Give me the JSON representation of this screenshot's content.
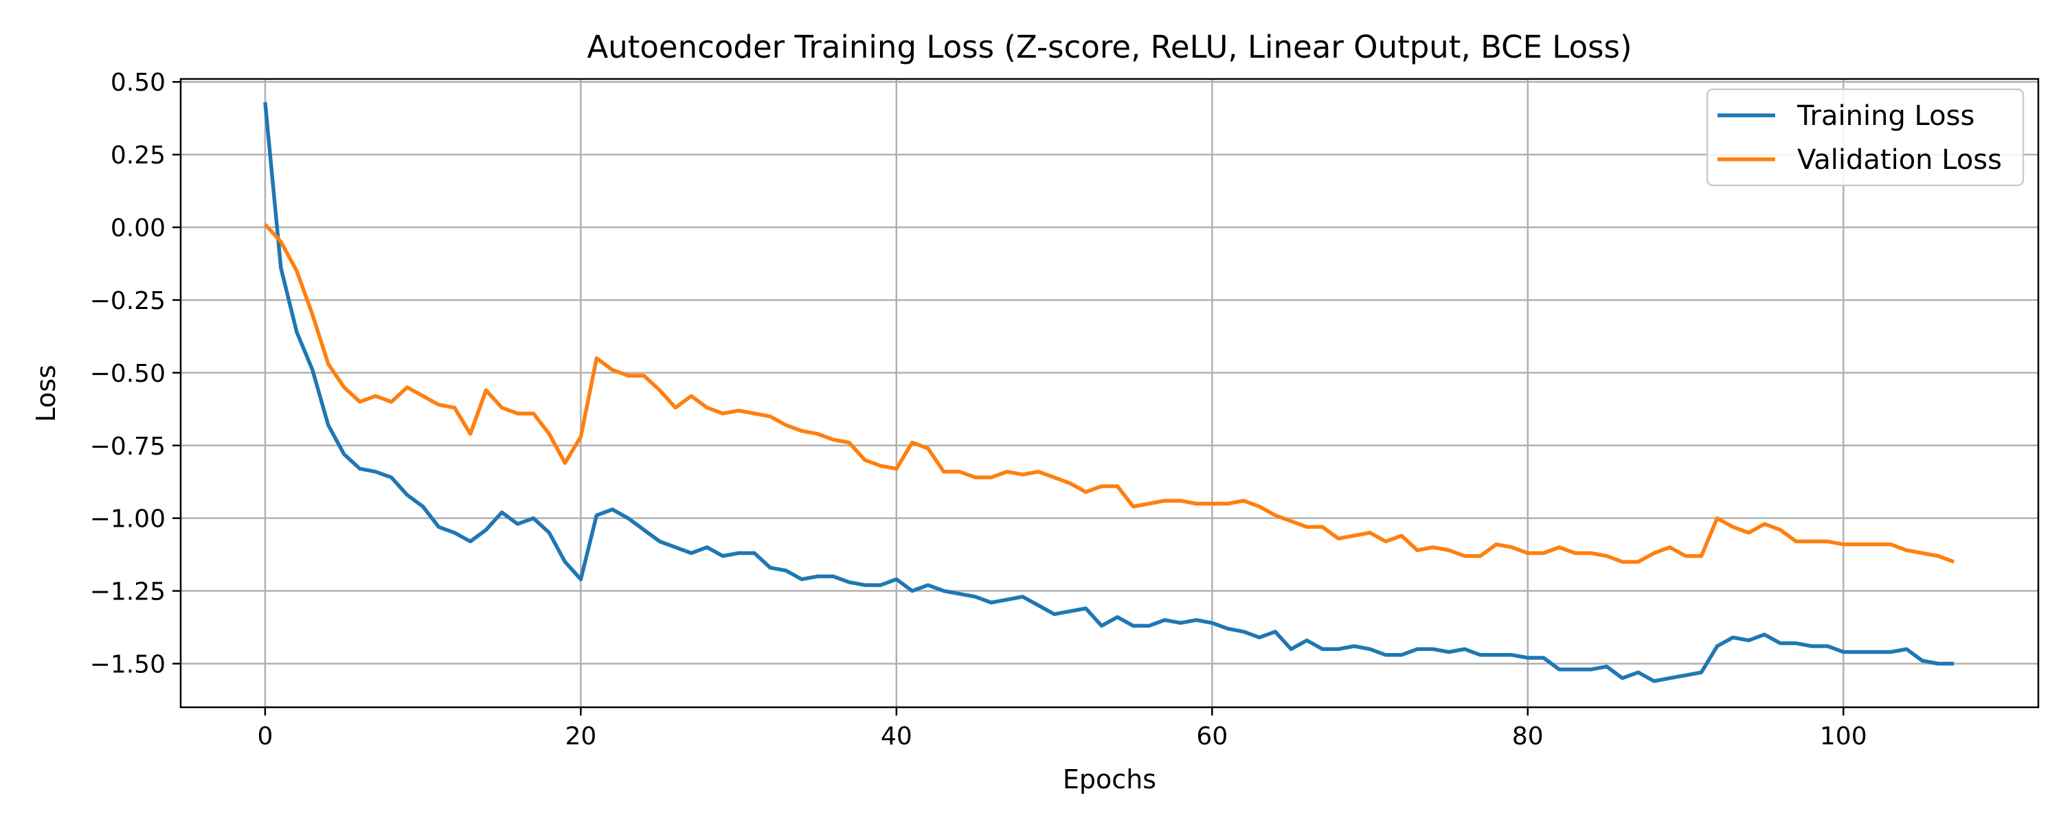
{
  "chart_data": {
    "type": "line",
    "title": "Autoencoder Training Loss (Z-score, ReLU, Linear Output, BCE Loss)",
    "xlabel": "Epochs",
    "ylabel": "Loss",
    "xlim": [
      -5.35,
      112.35
    ],
    "ylim": [
      -1.65,
      0.51
    ],
    "xticks": [
      0,
      20,
      40,
      60,
      80,
      100
    ],
    "yticks": [
      0.5,
      0.25,
      0.0,
      -0.25,
      -0.5,
      -0.75,
      -1.0,
      -1.25,
      -1.5
    ],
    "xtick_labels": [
      "0",
      "20",
      "40",
      "60",
      "80",
      "100"
    ],
    "ytick_labels": [
      "0.50",
      "0.25",
      "0.00",
      "−0.25",
      "−0.50",
      "−0.75",
      "−1.00",
      "−1.25",
      "−1.50"
    ],
    "grid": true,
    "legend_position": "top-right",
    "series": [
      {
        "name": "Training Loss",
        "color": "#1f77b4",
        "values": [
          0.43,
          -0.14,
          -0.36,
          -0.49,
          -0.68,
          -0.78,
          -0.83,
          -0.84,
          -0.86,
          -0.92,
          -0.96,
          -1.03,
          -1.05,
          -1.08,
          -1.04,
          -0.98,
          -1.02,
          -1.0,
          -1.05,
          -1.15,
          -1.21,
          -0.99,
          -0.97,
          -1.0,
          -1.04,
          -1.08,
          -1.1,
          -1.12,
          -1.1,
          -1.13,
          -1.12,
          -1.12,
          -1.17,
          -1.18,
          -1.21,
          -1.2,
          -1.2,
          -1.22,
          -1.23,
          -1.23,
          -1.21,
          -1.25,
          -1.23,
          -1.25,
          -1.26,
          -1.27,
          -1.29,
          -1.28,
          -1.27,
          -1.3,
          -1.33,
          -1.32,
          -1.31,
          -1.37,
          -1.34,
          -1.37,
          -1.37,
          -1.35,
          -1.36,
          -1.35,
          -1.36,
          -1.38,
          -1.39,
          -1.41,
          -1.39,
          -1.45,
          -1.42,
          -1.45,
          -1.45,
          -1.44,
          -1.45,
          -1.47,
          -1.47,
          -1.45,
          -1.45,
          -1.46,
          -1.45,
          -1.47,
          -1.47,
          -1.47,
          -1.48,
          -1.48,
          -1.52,
          -1.52,
          -1.52,
          -1.51,
          -1.55,
          -1.53,
          -1.56,
          -1.55,
          -1.54,
          -1.53,
          -1.44,
          -1.41,
          -1.42,
          -1.4,
          -1.43,
          -1.43,
          -1.44,
          -1.44,
          -1.46,
          -1.46,
          -1.46,
          -1.46,
          -1.45,
          -1.49,
          -1.5,
          -1.5
        ]
      },
      {
        "name": "Validation Loss",
        "color": "#ff7f0e",
        "values": [
          0.01,
          -0.05,
          -0.15,
          -0.3,
          -0.47,
          -0.55,
          -0.6,
          -0.58,
          -0.6,
          -0.55,
          -0.58,
          -0.61,
          -0.62,
          -0.71,
          -0.56,
          -0.62,
          -0.64,
          -0.64,
          -0.71,
          -0.81,
          -0.72,
          -0.45,
          -0.49,
          -0.51,
          -0.51,
          -0.56,
          -0.62,
          -0.58,
          -0.62,
          -0.64,
          -0.63,
          -0.64,
          -0.65,
          -0.68,
          -0.7,
          -0.71,
          -0.73,
          -0.74,
          -0.8,
          -0.82,
          -0.83,
          -0.74,
          -0.76,
          -0.84,
          -0.84,
          -0.86,
          -0.86,
          -0.84,
          -0.85,
          -0.84,
          -0.86,
          -0.88,
          -0.91,
          -0.89,
          -0.89,
          -0.96,
          -0.95,
          -0.94,
          -0.94,
          -0.95,
          -0.95,
          -0.95,
          -0.94,
          -0.96,
          -0.99,
          -1.01,
          -1.03,
          -1.03,
          -1.07,
          -1.06,
          -1.05,
          -1.08,
          -1.06,
          -1.11,
          -1.1,
          -1.11,
          -1.13,
          -1.13,
          -1.09,
          -1.1,
          -1.12,
          -1.12,
          -1.1,
          -1.12,
          -1.12,
          -1.13,
          -1.15,
          -1.15,
          -1.12,
          -1.1,
          -1.13,
          -1.13,
          -1.0,
          -1.03,
          -1.05,
          -1.02,
          -1.04,
          -1.08,
          -1.08,
          -1.08,
          -1.09,
          -1.09,
          -1.09,
          -1.09,
          -1.11,
          -1.12,
          -1.13,
          -1.15
        ]
      }
    ]
  }
}
